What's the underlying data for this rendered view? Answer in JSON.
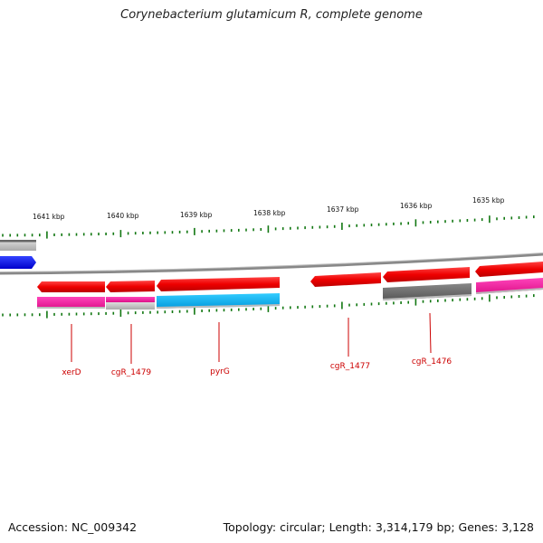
{
  "title": "Corynebacterium glutamicum R, complete genome",
  "footer": {
    "accession": "Accession: NC_009342",
    "summary": "Topology: circular; Length: 3,314,179 bp; Genes: 3,128"
  },
  "colors": {
    "forward_cds": "#ff0000",
    "function_magenta": "#ee1199",
    "function_cyan": "#11bbee",
    "function_gray": "#666666",
    "function_lightgray": "#bbbbbb",
    "function_blue": "#0000ee",
    "backbone": "#888888",
    "ticks": "#117711",
    "label": "#cc0000"
  },
  "ruler": {
    "ticks_kbp": [
      {
        "label": "1641 kbp",
        "value": 1641
      },
      {
        "label": "1640 kbp",
        "value": 1640
      },
      {
        "label": "1639 kbp",
        "value": 1639
      },
      {
        "label": "1638 kbp",
        "value": 1638
      },
      {
        "label": "1637 kbp",
        "value": 1637
      },
      {
        "label": "1636 kbp",
        "value": 1636
      },
      {
        "label": "1635 kbp",
        "value": 1635
      }
    ]
  },
  "gene_labels": [
    {
      "name": "xerD"
    },
    {
      "name": "cgR_1479"
    },
    {
      "name": "pyrG"
    },
    {
      "name": "cgR_1477"
    },
    {
      "name": "cgR_1476"
    }
  ]
}
